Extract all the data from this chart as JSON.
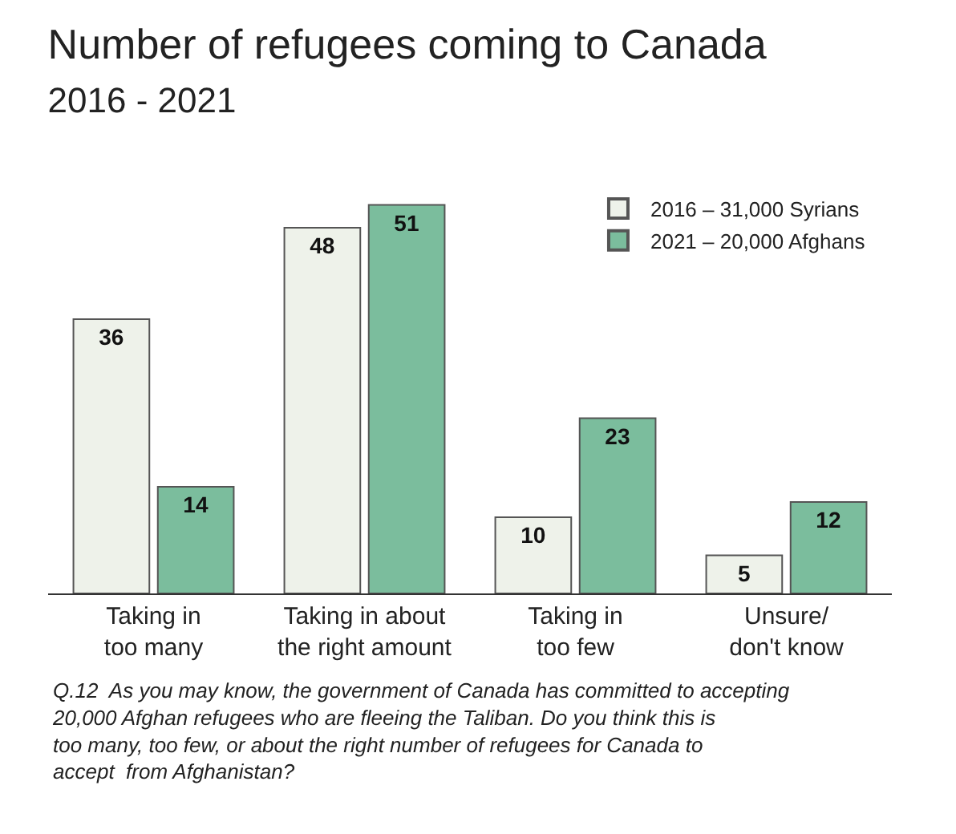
{
  "chart_data": {
    "type": "bar",
    "title": "Number of refugees coming to Canada",
    "subtitle": "2016 - 2021",
    "categories": [
      "Taking in\ntoo many",
      "Taking in about\nthe right amount",
      "Taking in\ntoo few",
      "Unsure/\ndon't know"
    ],
    "series": [
      {
        "name": "2016 – 31,000 Syrians",
        "color": "#eef2ea",
        "values": [
          36,
          48,
          10,
          5
        ]
      },
      {
        "name": "2021 – 20,000 Afghans",
        "color": "#7bbd9d",
        "values": [
          14,
          51,
          23,
          12
        ]
      }
    ],
    "data_labels": true,
    "legend": "top right",
    "annotations": [
      "Q.12  As you may know, the government of Canada has committed to accepting\n20,000 Afghan refugees who are fleeing the Taliban. Do you think this is\ntoo many, too few, or about the right number of refugees for Canada to\naccept  from Afghanistan?"
    ]
  }
}
